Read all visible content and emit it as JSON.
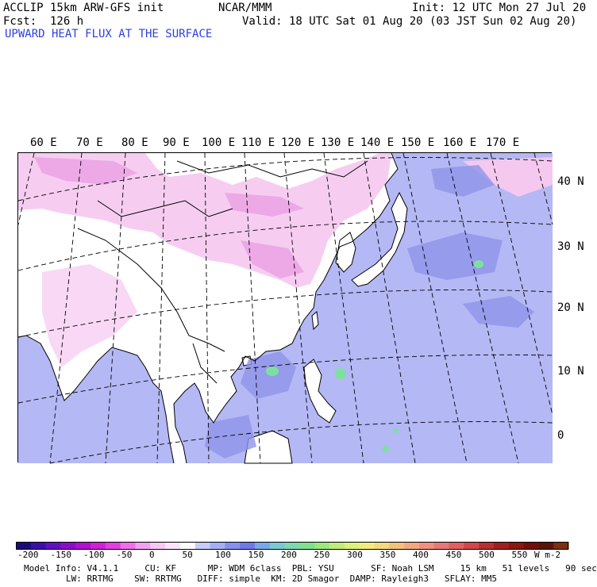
{
  "header": {
    "model": "ACCLIP 15km ARW-GFS init",
    "org": "NCAR/MMM",
    "init": "Init: 12 UTC Mon 27 Jul 20",
    "fcst": "Fcst:  126 h",
    "valid": "Valid: 18 UTC Sat 01 Aug 20 (03 JST Sun 02 Aug 20)",
    "field": "UPWARD HEAT FLUX AT THE SURFACE"
  },
  "map": {
    "lon_labels": [
      "60 E",
      "70 E",
      "80 E",
      "90 E",
      "100 E",
      "110 E",
      "120 E",
      "130 E",
      "140 E",
      "150 E",
      "160 E",
      "170 E"
    ],
    "lat_labels": [
      "40 N",
      "30 N",
      "20 N",
      "10 N",
      "0"
    ],
    "colors": {
      "land_low": "#ffffff",
      "land_neg": "#f5c8f0",
      "land_negstrong": "#e890e0",
      "ocean": "#b4b8f4",
      "ocean_mid": "#8e94ea",
      "flux_high": "#7ee0a0",
      "coast": "#000000"
    }
  },
  "colorbar": {
    "labels": [
      "-200",
      "-150",
      "-100",
      "-50",
      "0",
      "50",
      "100",
      "150",
      "200",
      "250",
      "300",
      "350",
      "400",
      "450",
      "500",
      "550"
    ],
    "unit": "W m-2",
    "colors": [
      "#1a0a7a",
      "#3a10a8",
      "#6010c0",
      "#8a10c8",
      "#b010d0",
      "#d020d8",
      "#e040e0",
      "#ee70e8",
      "#f4a0f0",
      "#f8c8f4",
      "#fce4fa",
      "#ffffff",
      "#c8ccf8",
      "#a8aef4",
      "#8890ee",
      "#7078e8",
      "#78a8e8",
      "#7cc8d0",
      "#7ed8b0",
      "#80e090",
      "#9ce880",
      "#c0ec7c",
      "#dcf07c",
      "#f0ec80",
      "#f4d880",
      "#f4c080",
      "#f4a880",
      "#f09080",
      "#e87878",
      "#e06060",
      "#d04848",
      "#b83030",
      "#a02020",
      "#881810",
      "#701008",
      "#5a1408",
      "#7a3010"
    ]
  },
  "model_info": {
    "line1": "Model Info: V4.1.1     CU: KF      MP: WDM 6class  PBL: YSU       SF: Noah LSM     15 km   51 levels   90 sec",
    "line2": "LW: RRTMG    SW: RRTMG   DIFF: simple  KM: 2D Smagor  DAMP: Rayleigh3   SFLAY: MM5"
  }
}
